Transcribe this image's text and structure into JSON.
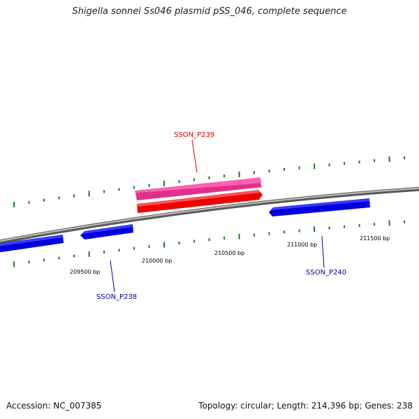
{
  "title": "Shigella sonnei Ss046 plasmid pSS_046, complete sequence",
  "accession": "Accession: NC_007385",
  "summary": "Topology: circular; Length: 214,396 bp; Genes: 238",
  "colors": {
    "backbone": "#8c8c8c",
    "tick": "#1a7a1a",
    "gene_forward_rna": "#ff3aa0",
    "gene_forward": "#ff0000",
    "gene_reverse": "#0000ee",
    "label_forward": "#dd0000",
    "label_reverse": "#0000aa"
  },
  "scale_labels": [
    {
      "text": "209500 bp"
    },
    {
      "text": "210000 bp"
    },
    {
      "text": "210500 bp"
    },
    {
      "text": "211000 bp"
    },
    {
      "text": "211500 bp"
    }
  ],
  "genes": [
    {
      "label": "SSON_P239",
      "strand": "forward"
    },
    {
      "label": "SSON_P238",
      "strand": "reverse"
    },
    {
      "label": "SSON_P240",
      "strand": "reverse"
    }
  ]
}
